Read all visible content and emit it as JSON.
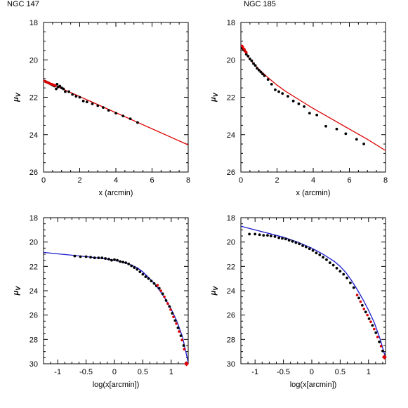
{
  "figure": {
    "titles": [
      "NGC 147",
      "NGC 185"
    ]
  },
  "chart_data": [
    {
      "panel": "top-left",
      "type": "scatter",
      "title": "NGC 147",
      "xlabel": "x (arcmin)",
      "ylabel": "μ",
      "ylabel_sub": "V",
      "xlim": [
        0,
        8
      ],
      "ylim": [
        26,
        18
      ],
      "y_inverted": true,
      "xticks": [
        0,
        2,
        4,
        6,
        8
      ],
      "xtick_labels": [
        "0",
        "2",
        "4",
        "6",
        "8"
      ],
      "yticks": [
        18,
        20,
        22,
        24,
        26
      ],
      "ytick_labels": [
        "18",
        "20",
        "22",
        "24",
        "26"
      ],
      "series": [
        {
          "kind": "points",
          "color": "#000000",
          "x": [
            0.1,
            0.2,
            0.3,
            0.4,
            0.5,
            0.6,
            0.7,
            0.75,
            0.8,
            0.9,
            1.0,
            1.1,
            1.2,
            1.4,
            1.6,
            1.8,
            2.0,
            2.2,
            2.4,
            2.7,
            3.0,
            3.3,
            3.6,
            4.0,
            4.4,
            4.8,
            5.2
          ],
          "y": [
            21.15,
            21.2,
            21.25,
            21.3,
            21.35,
            21.4,
            21.55,
            21.3,
            21.45,
            21.4,
            21.5,
            21.55,
            21.7,
            21.7,
            21.85,
            21.95,
            22.0,
            22.2,
            22.25,
            22.35,
            22.45,
            22.55,
            22.7,
            22.85,
            23.0,
            23.15,
            23.35
          ]
        },
        {
          "kind": "points",
          "color": "#dd0000",
          "x": [
            0.05,
            0.12,
            0.18,
            0.25,
            0.32,
            0.38,
            0.45,
            0.52,
            0.58,
            0.65
          ],
          "y": [
            21.13,
            21.17,
            21.2,
            21.22,
            21.25,
            21.28,
            21.3,
            21.33,
            21.35,
            21.38
          ]
        },
        {
          "kind": "line",
          "color": "#dd0000",
          "x": [
            0,
            8
          ],
          "y": [
            21.1,
            24.55
          ]
        }
      ]
    },
    {
      "panel": "top-right",
      "type": "scatter",
      "title": "NGC 185",
      "xlabel": "x (arcmin)",
      "ylabel": "μ",
      "ylabel_sub": "V",
      "xlim": [
        0,
        8
      ],
      "ylim": [
        26,
        18
      ],
      "y_inverted": true,
      "xticks": [
        0,
        2,
        4,
        6,
        8
      ],
      "xtick_labels": [
        "0",
        "2",
        "4",
        "6",
        "8"
      ],
      "yticks": [
        18,
        20,
        22,
        24,
        26
      ],
      "ytick_labels": [
        "18",
        "20",
        "22",
        "24",
        "26"
      ],
      "series": [
        {
          "kind": "points",
          "color": "#000000",
          "x": [
            0.05,
            0.1,
            0.15,
            0.2,
            0.3,
            0.4,
            0.5,
            0.6,
            0.7,
            0.8,
            0.9,
            1.0,
            1.1,
            1.2,
            1.3,
            1.5,
            1.7,
            1.9,
            2.1,
            2.3,
            2.6,
            2.9,
            3.2,
            3.5,
            3.8,
            4.2,
            4.7,
            5.3,
            5.8,
            6.4,
            6.8
          ],
          "y": [
            19.35,
            19.4,
            19.45,
            19.5,
            19.7,
            19.8,
            19.95,
            20.05,
            20.2,
            20.3,
            20.45,
            20.55,
            20.65,
            20.75,
            20.85,
            21.05,
            21.3,
            21.6,
            21.7,
            21.8,
            21.95,
            22.2,
            22.35,
            22.5,
            22.85,
            22.95,
            23.55,
            23.7,
            23.95,
            24.25,
            24.5
          ]
        },
        {
          "kind": "points",
          "color": "#dd0000",
          "x": [
            0.05,
            0.1,
            0.15,
            0.2,
            0.25,
            0.3
          ],
          "y": [
            19.25,
            19.3,
            19.4,
            19.45,
            19.55,
            19.6
          ]
        },
        {
          "kind": "curve",
          "color": "#dd0000",
          "x": [
            0,
            0.1,
            0.2,
            0.3,
            0.5,
            0.75,
            1.0,
            1.5,
            2.0,
            2.5,
            3.0,
            3.5,
            4.0,
            5.0,
            6.0,
            7.0,
            8.0
          ],
          "y": [
            19.2,
            19.4,
            19.55,
            19.7,
            19.95,
            20.25,
            20.5,
            20.95,
            21.35,
            21.7,
            22.0,
            22.3,
            22.6,
            23.15,
            23.7,
            24.25,
            24.85
          ]
        }
      ]
    },
    {
      "panel": "bottom-left",
      "type": "scatter",
      "xlabel": "log(x[arcmin])",
      "ylabel": "μ",
      "ylabel_sub": "V",
      "xlim": [
        -1.25,
        1.3
      ],
      "ylim": [
        30,
        18
      ],
      "y_inverted": true,
      "xticks": [
        -1,
        -0.5,
        0,
        0.5,
        1
      ],
      "xtick_labels": [
        "-1",
        "-0.5",
        "0",
        "0.5",
        "1"
      ],
      "yticks": [
        18,
        20,
        22,
        24,
        26,
        28,
        30
      ],
      "ytick_labels": [
        "18",
        "20",
        "22",
        "24",
        "26",
        "28",
        "30"
      ],
      "series": [
        {
          "kind": "points",
          "color": "#000000",
          "x": [
            -0.7,
            -0.6,
            -0.5,
            -0.42,
            -0.35,
            -0.28,
            -0.22,
            -0.16,
            -0.1,
            -0.05,
            0.0,
            0.05,
            0.1,
            0.15,
            0.2,
            0.25,
            0.3,
            0.35,
            0.4,
            0.45,
            0.5,
            0.55,
            0.6,
            0.65,
            0.7,
            0.74
          ],
          "y": [
            21.15,
            21.2,
            21.2,
            21.25,
            21.3,
            21.3,
            21.3,
            21.35,
            21.4,
            21.5,
            21.45,
            21.5,
            21.6,
            21.65,
            21.7,
            21.8,
            21.95,
            22.1,
            22.25,
            22.45,
            22.65,
            22.85,
            23.0,
            23.2,
            23.4,
            23.6
          ]
        },
        {
          "kind": "points",
          "color": "#dd0000",
          "x": [
            0.76,
            0.82,
            0.88,
            0.94,
            0.99,
            1.04,
            1.09,
            1.14,
            1.19,
            1.23,
            1.27
          ],
          "y": [
            23.55,
            24.0,
            24.5,
            25.05,
            25.55,
            26.15,
            26.7,
            27.35,
            28.05,
            28.8,
            30.0
          ]
        },
        {
          "kind": "points",
          "color": "#000000",
          "x": [
            0.79,
            0.85,
            0.91,
            0.97,
            1.02,
            1.07,
            1.12,
            1.17,
            1.22
          ],
          "y": [
            23.8,
            24.25,
            24.8,
            25.3,
            25.85,
            26.45,
            27.05,
            27.7,
            28.5
          ]
        },
        {
          "kind": "curve",
          "color": "#1a1acc",
          "x": [
            -1.25,
            -1.0,
            -0.75,
            -0.5,
            -0.25,
            0.0,
            0.2,
            0.4,
            0.5,
            0.6,
            0.7,
            0.8,
            0.9,
            1.0,
            1.1,
            1.2,
            1.3
          ],
          "y": [
            20.85,
            20.97,
            21.08,
            21.2,
            21.32,
            21.5,
            21.7,
            22.1,
            22.45,
            22.9,
            23.4,
            24.0,
            24.7,
            25.5,
            26.5,
            27.8,
            29.9
          ]
        }
      ]
    },
    {
      "panel": "bottom-right",
      "type": "scatter",
      "xlabel": "log(x[arcmin])",
      "ylabel": "μ",
      "ylabel_sub": "V",
      "xlim": [
        -1.25,
        1.3
      ],
      "ylim": [
        30,
        18
      ],
      "y_inverted": true,
      "xticks": [
        -1,
        -0.5,
        0,
        0.5,
        1
      ],
      "xtick_labels": [
        "-1",
        "-0.5",
        "0",
        "0.5",
        "1"
      ],
      "yticks": [
        18,
        20,
        22,
        24,
        26,
        28,
        30
      ],
      "ytick_labels": [
        "18",
        "20",
        "22",
        "24",
        "26",
        "28",
        "30"
      ],
      "series": [
        {
          "kind": "points",
          "color": "#000000",
          "x": [
            -1.1,
            -1.0,
            -0.92,
            -0.85,
            -0.78,
            -0.72,
            -0.65,
            -0.58,
            -0.52,
            -0.46,
            -0.4,
            -0.34,
            -0.28,
            -0.22,
            -0.16,
            -0.1,
            -0.04,
            0.02,
            0.08,
            0.14,
            0.2,
            0.26,
            0.32,
            0.38,
            0.44,
            0.5,
            0.56,
            0.62,
            0.68,
            0.74
          ],
          "y": [
            19.35,
            19.35,
            19.4,
            19.45,
            19.45,
            19.5,
            19.55,
            19.65,
            19.7,
            19.75,
            19.85,
            19.95,
            20.05,
            20.15,
            20.3,
            20.4,
            20.55,
            20.7,
            20.9,
            21.05,
            21.25,
            21.45,
            21.7,
            21.9,
            22.15,
            22.4,
            22.65,
            22.95,
            23.35,
            23.75
          ]
        },
        {
          "kind": "points",
          "color": "#dd0000",
          "x": [
            0.8,
            0.86,
            0.92,
            0.98,
            1.04,
            1.1,
            1.16,
            1.22,
            1.28
          ],
          "y": [
            24.35,
            24.9,
            25.5,
            26.0,
            26.55,
            27.15,
            27.8,
            28.55,
            29.45
          ]
        },
        {
          "kind": "points",
          "color": "#000000",
          "x": [
            0.83,
            0.89,
            0.95,
            1.01,
            1.07,
            1.13,
            1.19,
            1.25
          ],
          "y": [
            24.6,
            25.2,
            25.75,
            26.3,
            26.85,
            27.45,
            28.2,
            28.95
          ]
        },
        {
          "kind": "curve",
          "color": "#1a1acc",
          "x": [
            -1.25,
            -1.0,
            -0.75,
            -0.5,
            -0.25,
            0.0,
            0.2,
            0.4,
            0.5,
            0.6,
            0.7,
            0.8,
            0.9,
            1.0,
            1.1,
            1.2,
            1.3
          ],
          "y": [
            18.7,
            19.0,
            19.3,
            19.6,
            20.0,
            20.5,
            21.0,
            21.6,
            22.0,
            22.5,
            23.15,
            23.9,
            24.7,
            25.6,
            26.6,
            27.9,
            29.5
          ]
        }
      ]
    }
  ]
}
